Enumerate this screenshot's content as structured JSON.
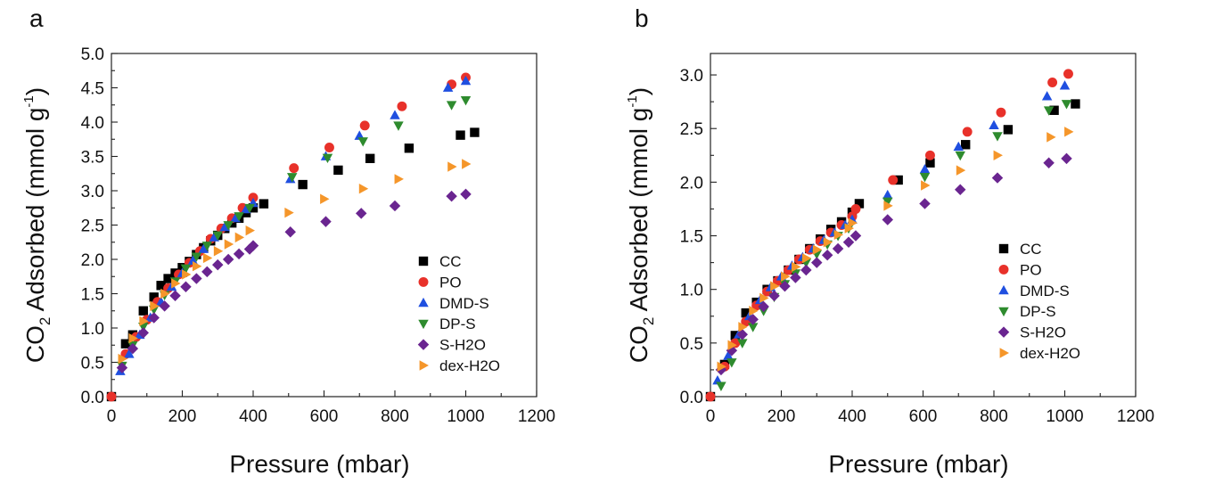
{
  "figure": {
    "legend_marker_glyphs": {
      "square": "■",
      "circle": "●",
      "triangle-up": "▲",
      "triangle-down": "▼",
      "diamond": "◆",
      "triangle-right": "►"
    }
  },
  "chart_data": [
    {
      "type": "scatter",
      "panel_label": "a",
      "xlabel": "Pressure (mbar)",
      "ylabel_parts": {
        "pre": "CO",
        "sub": "2",
        "mid": " Adsorbed (mmol g",
        "sup": "-1",
        "post": ")"
      },
      "xlim": [
        0,
        1200
      ],
      "ylim": [
        0,
        5.0
      ],
      "xticks": [
        0,
        200,
        400,
        600,
        800,
        1000,
        1200
      ],
      "yticks": [
        0.0,
        0.5,
        1.0,
        1.5,
        2.0,
        2.5,
        3.0,
        3.5,
        4.0,
        4.5,
        5.0
      ],
      "ytick_decimals": 1,
      "grid": false,
      "legend_position": "lower-right",
      "series": [
        {
          "name": "CC",
          "color": "#000000",
          "marker": "square",
          "x": [
            0,
            40,
            60,
            90,
            120,
            140,
            160,
            180,
            200,
            220,
            240,
            260,
            280,
            300,
            320,
            340,
            360,
            380,
            400,
            430,
            540,
            640,
            730,
            840,
            985,
            1025
          ],
          "y": [
            0.0,
            0.77,
            0.9,
            1.25,
            1.45,
            1.62,
            1.72,
            1.8,
            1.88,
            1.97,
            2.07,
            2.17,
            2.27,
            2.35,
            2.45,
            2.53,
            2.6,
            2.68,
            2.75,
            2.81,
            3.09,
            3.3,
            3.47,
            3.62,
            3.81,
            3.85
          ]
        },
        {
          "name": "PO",
          "color": "#e8312a",
          "marker": "circle",
          "x": [
            0,
            40,
            70,
            100,
            130,
            160,
            190,
            220,
            250,
            280,
            310,
            340,
            370,
            400,
            515,
            615,
            715,
            820,
            960,
            1000
          ],
          "y": [
            0.0,
            0.62,
            0.87,
            1.12,
            1.38,
            1.58,
            1.78,
            1.95,
            2.12,
            2.3,
            2.45,
            2.6,
            2.75,
            2.9,
            3.33,
            3.63,
            3.95,
            4.23,
            4.55,
            4.65
          ]
        },
        {
          "name": "DMD-S",
          "color": "#1f4fe0",
          "marker": "triangle-up",
          "x": [
            25,
            50,
            80,
            110,
            140,
            170,
            200,
            230,
            260,
            290,
            320,
            350,
            380,
            400,
            505,
            605,
            700,
            800,
            950,
            1000
          ],
          "y": [
            0.37,
            0.62,
            0.9,
            1.15,
            1.38,
            1.6,
            1.8,
            1.98,
            2.15,
            2.32,
            2.47,
            2.6,
            2.73,
            2.82,
            3.17,
            3.5,
            3.8,
            4.1,
            4.5,
            4.6
          ]
        },
        {
          "name": "DP-S",
          "color": "#2e8b2e",
          "marker": "triangle-down",
          "x": [
            30,
            60,
            90,
            120,
            150,
            180,
            210,
            240,
            270,
            300,
            330,
            360,
            390,
            510,
            610,
            710,
            810,
            960,
            1000
          ],
          "y": [
            0.45,
            0.75,
            1.02,
            1.27,
            1.48,
            1.68,
            1.87,
            2.04,
            2.2,
            2.35,
            2.5,
            2.63,
            2.75,
            3.2,
            3.48,
            3.72,
            3.95,
            4.25,
            4.32
          ]
        },
        {
          "name": "S-H2O",
          "color": "#6a2590",
          "marker": "diamond",
          "x": [
            30,
            60,
            90,
            120,
            150,
            180,
            210,
            240,
            270,
            300,
            330,
            360,
            390,
            400,
            505,
            605,
            705,
            800,
            960,
            1000
          ],
          "y": [
            0.42,
            0.7,
            0.93,
            1.15,
            1.32,
            1.47,
            1.6,
            1.72,
            1.82,
            1.92,
            2.0,
            2.08,
            2.15,
            2.2,
            2.4,
            2.55,
            2.67,
            2.78,
            2.92,
            2.95
          ]
        },
        {
          "name": "dex-H2O",
          "color": "#f5962a",
          "marker": "triangle-right",
          "x": [
            30,
            60,
            90,
            120,
            150,
            180,
            210,
            240,
            270,
            300,
            330,
            360,
            390,
            500,
            600,
            710,
            810,
            960,
            1000
          ],
          "y": [
            0.55,
            0.85,
            1.1,
            1.32,
            1.5,
            1.65,
            1.78,
            1.9,
            2.02,
            2.12,
            2.22,
            2.32,
            2.42,
            2.68,
            2.88,
            3.03,
            3.17,
            3.35,
            3.39
          ]
        }
      ]
    },
    {
      "type": "scatter",
      "panel_label": "b",
      "xlabel": "Pressure (mbar)",
      "ylabel_parts": {
        "pre": "CO",
        "sub": "2",
        "mid": " Adsorbed (mmol g",
        "sup": "-1",
        "post": ")"
      },
      "xlim": [
        0,
        1200
      ],
      "ylim": [
        0,
        3.2
      ],
      "xticks": [
        0,
        200,
        400,
        600,
        800,
        1000,
        1200
      ],
      "yticks": [
        0.0,
        0.5,
        1.0,
        1.5,
        2.0,
        2.5,
        3.0
      ],
      "ytick_decimals": 1,
      "grid": false,
      "legend_position": "lower-right",
      "series": [
        {
          "name": "CC",
          "color": "#000000",
          "marker": "square",
          "x": [
            0,
            40,
            70,
            100,
            130,
            160,
            190,
            220,
            250,
            280,
            310,
            340,
            370,
            400,
            420,
            530,
            620,
            720,
            840,
            970,
            1030
          ],
          "y": [
            0.0,
            0.3,
            0.57,
            0.78,
            0.88,
            1.0,
            1.08,
            1.18,
            1.28,
            1.38,
            1.47,
            1.56,
            1.63,
            1.72,
            1.8,
            2.02,
            2.18,
            2.35,
            2.49,
            2.67,
            2.73
          ]
        },
        {
          "name": "PO",
          "color": "#e8312a",
          "marker": "circle",
          "x": [
            0,
            40,
            70,
            100,
            130,
            160,
            190,
            220,
            250,
            280,
            310,
            340,
            370,
            400,
            410,
            515,
            620,
            725,
            820,
            965,
            1010
          ],
          "y": [
            0.0,
            0.28,
            0.5,
            0.7,
            0.85,
            0.98,
            1.08,
            1.18,
            1.28,
            1.37,
            1.45,
            1.53,
            1.6,
            1.68,
            1.75,
            2.02,
            2.25,
            2.47,
            2.65,
            2.93,
            3.01
          ]
        },
        {
          "name": "DMD-S",
          "color": "#1f4fe0",
          "marker": "triangle-up",
          "x": [
            20,
            50,
            80,
            110,
            140,
            170,
            200,
            230,
            260,
            290,
            320,
            350,
            380,
            400,
            500,
            605,
            700,
            800,
            950,
            1000
          ],
          "y": [
            0.15,
            0.38,
            0.58,
            0.75,
            0.9,
            1.02,
            1.12,
            1.22,
            1.3,
            1.38,
            1.46,
            1.53,
            1.6,
            1.65,
            1.88,
            2.12,
            2.33,
            2.53,
            2.8,
            2.9
          ]
        },
        {
          "name": "DP-S",
          "color": "#2e8b2e",
          "marker": "triangle-down",
          "x": [
            30,
            60,
            90,
            120,
            150,
            180,
            210,
            240,
            270,
            300,
            330,
            360,
            390,
            500,
            605,
            705,
            810,
            955,
            1005
          ],
          "y": [
            0.1,
            0.32,
            0.5,
            0.65,
            0.8,
            0.93,
            1.05,
            1.15,
            1.25,
            1.33,
            1.42,
            1.5,
            1.57,
            1.82,
            2.05,
            2.25,
            2.43,
            2.67,
            2.73
          ]
        },
        {
          "name": "S-H2O",
          "color": "#6a2590",
          "marker": "diamond",
          "x": [
            30,
            60,
            90,
            120,
            150,
            180,
            210,
            240,
            270,
            300,
            330,
            360,
            390,
            410,
            500,
            605,
            705,
            810,
            955,
            1005
          ],
          "y": [
            0.25,
            0.43,
            0.58,
            0.72,
            0.84,
            0.94,
            1.03,
            1.11,
            1.18,
            1.25,
            1.32,
            1.38,
            1.44,
            1.5,
            1.65,
            1.8,
            1.93,
            2.04,
            2.18,
            2.22
          ]
        },
        {
          "name": "dex-H2O",
          "color": "#f5962a",
          "marker": "triangle-right",
          "x": [
            30,
            60,
            90,
            120,
            150,
            180,
            210,
            240,
            270,
            300,
            330,
            360,
            390,
            400,
            500,
            605,
            705,
            810,
            960,
            1010
          ],
          "y": [
            0.28,
            0.48,
            0.65,
            0.8,
            0.92,
            1.03,
            1.12,
            1.21,
            1.29,
            1.37,
            1.44,
            1.51,
            1.57,
            1.62,
            1.78,
            1.97,
            2.11,
            2.25,
            2.42,
            2.47
          ]
        }
      ]
    }
  ]
}
